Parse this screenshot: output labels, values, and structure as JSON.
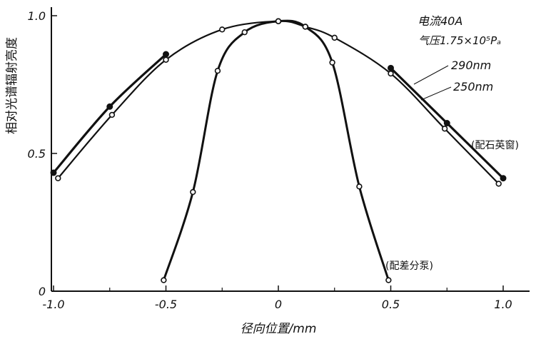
{
  "chart_data": {
    "type": "line",
    "xlabel": "径向位置/mm",
    "ylabel": "相对光谱辐射亮度",
    "xlim": [
      -1.05,
      1.08
    ],
    "ylim": [
      0,
      1.02
    ],
    "x_ticks": [
      "-1.0",
      "-0.5",
      "0",
      "0.5",
      "1.0"
    ],
    "y_ticks": [
      "0",
      "0.5",
      "1.0"
    ],
    "conditions": [
      "电流40A",
      "气压1.75×10⁵Pₐ"
    ],
    "annotations": [
      "(配石英窗)",
      "(配差分泵)"
    ],
    "series": [
      {
        "name": "290nm",
        "x": [
          -1.0,
          -0.75,
          -0.5,
          0.5,
          0.75,
          1.0
        ],
        "y": [
          0.43,
          0.67,
          0.86,
          0.81,
          0.61,
          0.41
        ]
      },
      {
        "name": "250nm",
        "x": [
          -0.98,
          -0.74,
          -0.5,
          -0.25,
          0.0,
          0.12,
          0.25,
          0.5,
          0.74,
          0.98
        ],
        "y": [
          0.41,
          0.64,
          0.84,
          0.95,
          0.98,
          0.96,
          0.92,
          0.79,
          0.59,
          0.39
        ]
      },
      {
        "name": "(配差分泵)",
        "x": [
          -0.51,
          -0.38,
          -0.27,
          -0.15,
          0.0,
          0.12,
          0.24,
          0.36,
          0.49
        ],
        "y": [
          0.04,
          0.36,
          0.8,
          0.94,
          0.98,
          0.96,
          0.83,
          0.38,
          0.04
        ]
      }
    ]
  }
}
